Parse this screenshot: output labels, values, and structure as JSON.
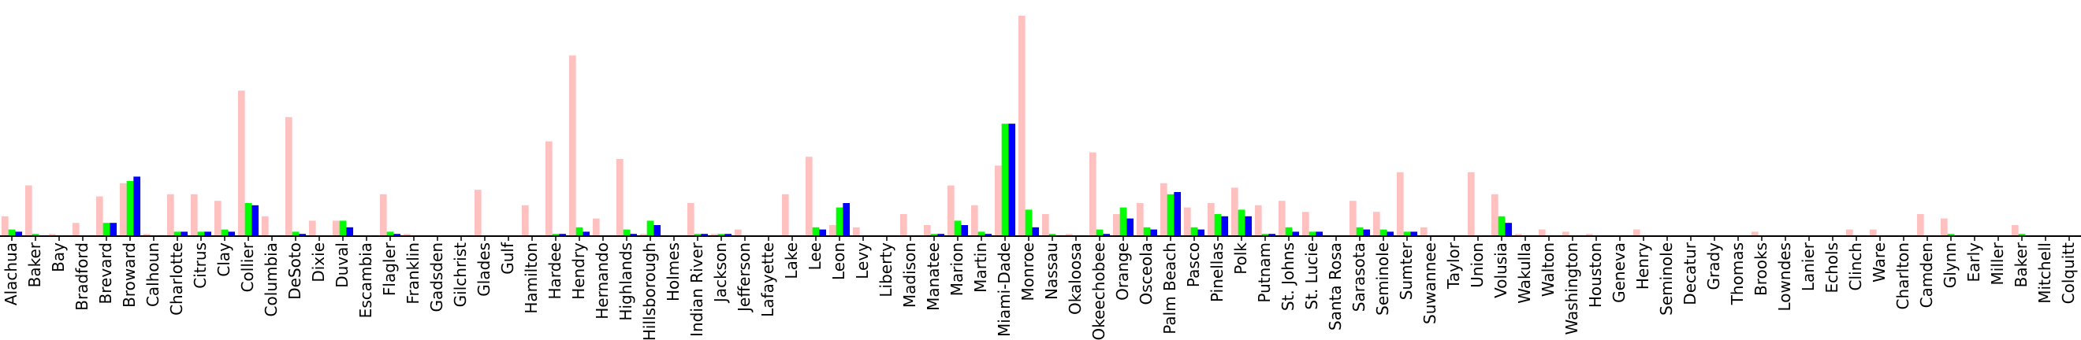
{
  "chart_data": {
    "type": "bar",
    "title": "",
    "xlabel": "",
    "ylabel": "",
    "ylim": [
      0,
      100
    ],
    "legend": "none",
    "grid": false,
    "categories": [
      "Alachua",
      "Baker",
      "Bay",
      "Bradford",
      "Brevard",
      "Broward",
      "Calhoun",
      "Charlotte",
      "Citrus",
      "Clay",
      "Collier",
      "Columbia",
      "DeSoto",
      "Dixie",
      "Duval",
      "Escambia",
      "Flagler",
      "Franklin",
      "Gadsden",
      "Gilchrist",
      "Glades",
      "Gulf",
      "Hamilton",
      "Hardee",
      "Hendry",
      "Hernando",
      "Highlands",
      "Hillsborough",
      "Holmes",
      "Indian River",
      "Jackson",
      "Jefferson",
      "Lafayette",
      "Lake",
      "Lee",
      "Leon",
      "Levy",
      "Liberty",
      "Madison",
      "Manatee",
      "Marion",
      "Martin",
      "Miami-Dade",
      "Monroe",
      "Nassau",
      "Okaloosa",
      "Okeechobee",
      "Orange",
      "Osceola",
      "Palm Beach",
      "Pasco",
      "Pinellas",
      "Polk",
      "Putnam",
      "St. Johns",
      "St. Lucie",
      "Santa Rosa",
      "Sarasota",
      "Seminole",
      "Sumter",
      "Suwannee",
      "Taylor",
      "Union",
      "Volusia",
      "Wakulla",
      "Walton",
      "Washington",
      "Houston",
      "Geneva",
      "Henry",
      "Seminole",
      "Decatur",
      "Grady",
      "Thomas",
      "Brooks",
      "Lowndes",
      "Lanier",
      "Echols",
      "Clinch",
      "Ware",
      "Charlton",
      "Camden",
      "Glynn",
      "Early",
      "Miller",
      "Baker",
      "Mitchell",
      "Colquitt"
    ],
    "series": [
      {
        "color": "#ffc0c0",
        "values": [
          9,
          23,
          1,
          6,
          18,
          24,
          1,
          19,
          19,
          16,
          66,
          9,
          54,
          7,
          7,
          0,
          19,
          1,
          0,
          0,
          21,
          0,
          14,
          43,
          82,
          8,
          35,
          1,
          0,
          15,
          1,
          3,
          0,
          19,
          36,
          5,
          4,
          0,
          10,
          5,
          23,
          14,
          32,
          100,
          10,
          1,
          38,
          10,
          15,
          24,
          13,
          15,
          22,
          14,
          16,
          11,
          0,
          16,
          11,
          29,
          4,
          0,
          29,
          19,
          1,
          3,
          2,
          1,
          0,
          3,
          0,
          0,
          0,
          0,
          2,
          0,
          0,
          0,
          3,
          3,
          0,
          10,
          8,
          0,
          0,
          5,
          0,
          0
        ]
      },
      {
        "color": "#00ff00",
        "values": [
          3,
          1,
          0,
          0,
          6,
          25,
          0,
          2,
          2,
          3,
          15,
          0,
          2,
          0,
          7,
          0,
          2,
          0,
          0,
          0,
          0,
          0,
          0,
          1,
          4,
          0,
          3,
          7,
          0,
          1,
          1,
          0,
          0,
          0,
          4,
          13,
          0,
          0,
          0,
          1,
          7,
          2,
          51,
          12,
          1,
          0,
          3,
          13,
          4,
          19,
          4,
          10,
          12,
          1,
          4,
          2,
          0,
          4,
          3,
          2,
          0,
          0,
          0,
          9,
          0,
          0,
          0,
          0,
          0,
          0,
          0,
          0,
          0,
          0,
          0,
          0,
          0,
          0,
          0,
          0,
          0,
          0,
          1,
          0,
          0,
          1,
          0,
          0
        ]
      },
      {
        "color": "#0000ff",
        "values": [
          2,
          0,
          0,
          0,
          6,
          27,
          0,
          2,
          2,
          2,
          14,
          0,
          1,
          0,
          4,
          0,
          1,
          0,
          0,
          0,
          0,
          0,
          0,
          1,
          2,
          0,
          1,
          5,
          0,
          1,
          1,
          0,
          0,
          0,
          3,
          15,
          0,
          0,
          0,
          1,
          5,
          1,
          51,
          4,
          0,
          0,
          1,
          8,
          3,
          20,
          3,
          9,
          9,
          1,
          2,
          2,
          0,
          3,
          2,
          2,
          0,
          0,
          0,
          6,
          0,
          0,
          0,
          0,
          0,
          0,
          0,
          0,
          0,
          0,
          0,
          0,
          0,
          0,
          0,
          0,
          0,
          0,
          0,
          0,
          0,
          0,
          0,
          0
        ]
      }
    ]
  }
}
